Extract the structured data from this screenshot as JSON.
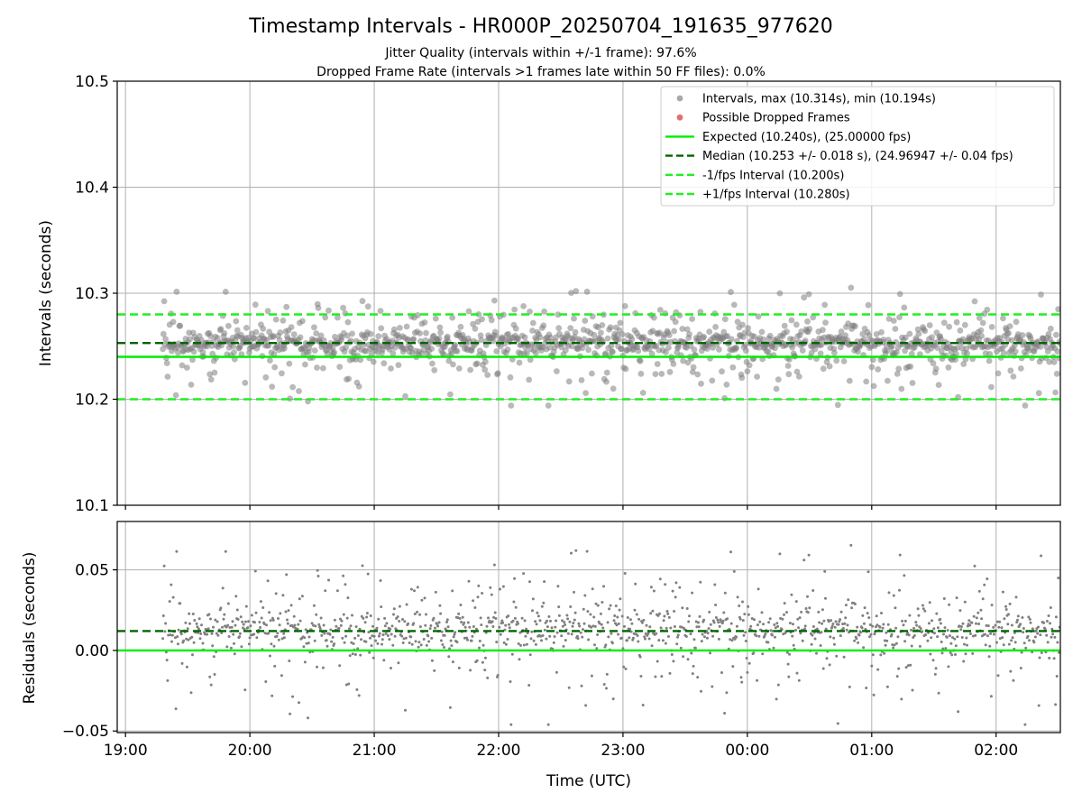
{
  "figure": {
    "title": "Timestamp Intervals - HR000P_20250704_191635_977620",
    "subtitle_1": "Jitter Quality (intervals within +/-1 frame): 97.6%",
    "subtitle_2": "Dropped Frame Rate (intervals >1 frames late within 50 FF files): 0.0%"
  },
  "chart_data": [
    {
      "type": "scatter",
      "name": "intervals-panel",
      "ylabel": "Intervals (seconds)",
      "ylim": [
        10.1,
        10.5
      ],
      "yticks": [
        10.1,
        10.2,
        10.3,
        10.4,
        10.5
      ],
      "ytick_labels": [
        "10.1",
        "10.2",
        "10.3",
        "10.4",
        "10.5"
      ],
      "xlim": [
        "18:56",
        "02:31"
      ],
      "grid": true,
      "legend_position": "top-right",
      "series_generation": {
        "start": "19:18",
        "end": "02:31",
        "count": 1300,
        "expected": 10.24,
        "median": 10.253,
        "std": 0.018,
        "min": 10.194,
        "max": 10.314,
        "seed": 20250704
      },
      "lines": [
        {
          "name": "Expected (10.240s), (25.00000 fps)",
          "y": 10.24,
          "color": "#00ee00",
          "style": "solid"
        },
        {
          "name": "Median (10.253 +/- 0.018 s), (24.96947 +/- 0.04 fps)",
          "y": 10.253,
          "color": "#006400",
          "style": "dashed"
        },
        {
          "name": "-1/fps Interval (10.200s)",
          "y": 10.2,
          "color": "#22ee22",
          "style": "dashed"
        },
        {
          "name": "+1/fps Interval (10.280s)",
          "y": 10.28,
          "color": "#22ee22",
          "style": "dashed"
        }
      ],
      "legend": [
        {
          "label": "Intervals, max (10.314s), min (10.194s)",
          "marker": "dot",
          "color": "#a0a0a0"
        },
        {
          "label": "Possible Dropped Frames",
          "marker": "dot",
          "color": "#e06060"
        },
        {
          "label": "Expected (10.240s), (25.00000 fps)",
          "marker": "line",
          "color": "#00ee00"
        },
        {
          "label": "Median (10.253 +/- 0.018 s), (24.96947 +/- 0.04 fps)",
          "marker": "dash",
          "color": "#006400"
        },
        {
          "label": "-1/fps Interval (10.200s)",
          "marker": "dash",
          "color": "#22ee22"
        },
        {
          "label": "+1/fps Interval (10.280s)",
          "marker": "dash",
          "color": "#22ee22"
        }
      ]
    },
    {
      "type": "scatter",
      "name": "residuals-panel",
      "ylabel": "Residuals (seconds)",
      "xlabel": "Time (UTC)",
      "ylim": [
        -0.051,
        0.08
      ],
      "yticks": [
        -0.05,
        0.0,
        0.05
      ],
      "ytick_labels": [
        "−0.05",
        "0.00",
        "0.05"
      ],
      "xticks": [
        "19:00",
        "20:00",
        "21:00",
        "22:00",
        "23:00",
        "00:00",
        "01:00",
        "02:00"
      ],
      "grid": true,
      "lines": [
        {
          "name": "zero",
          "y": 0.0,
          "color": "#00ee00",
          "style": "solid"
        },
        {
          "name": "median-offset",
          "y": 0.012,
          "color": "#006400",
          "style": "dashed"
        }
      ]
    }
  ],
  "colors": {
    "points": "#808080",
    "expected": "#00ee00",
    "median": "#006400",
    "bounds": "#22ee22",
    "grid": "#b0b0b0"
  }
}
